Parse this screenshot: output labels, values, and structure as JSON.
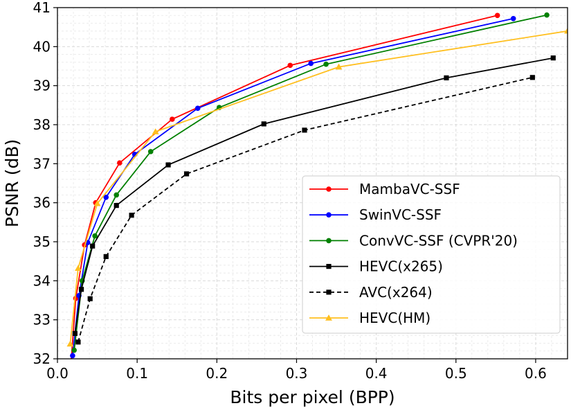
{
  "chart_data": {
    "type": "line",
    "title": "",
    "xlabel": "Bits per pixel (BPP)",
    "ylabel": "PSNR (dB)",
    "xlim": [
      0.0,
      0.64
    ],
    "ylim": [
      32,
      41
    ],
    "x_ticks": [
      "0.0",
      "0.1",
      "0.2",
      "0.3",
      "0.4",
      "0.5",
      "0.6"
    ],
    "y_ticks": [
      "32",
      "33",
      "34",
      "35",
      "36",
      "37",
      "38",
      "39",
      "40",
      "41"
    ],
    "grid": true,
    "minor_grid": true,
    "legend_position": "lower-right",
    "series": [
      {
        "name": "MambaVC-SSF",
        "color": "#ff0000",
        "marker": "circle",
        "linestyle": "solid",
        "x": [
          0.017,
          0.023,
          0.034,
          0.048,
          0.078,
          0.144,
          0.292,
          0.552
        ],
        "y": [
          31.9,
          33.55,
          34.92,
          36.0,
          37.02,
          38.14,
          39.52,
          40.8
        ]
      },
      {
        "name": "SwinVC-SSF",
        "color": "#0000ff",
        "marker": "circle",
        "linestyle": "solid",
        "x": [
          0.019,
          0.027,
          0.038,
          0.061,
          0.097,
          0.176,
          0.318,
          0.572
        ],
        "y": [
          32.08,
          33.62,
          34.98,
          36.14,
          37.24,
          38.42,
          39.57,
          40.72
        ]
      },
      {
        "name": "ConvVC-SSF (CVPR'20)",
        "color": "#008000",
        "marker": "circle",
        "linestyle": "solid",
        "x": [
          0.021,
          0.031,
          0.047,
          0.074,
          0.117,
          0.203,
          0.337,
          0.614
        ],
        "y": [
          32.22,
          34.0,
          35.15,
          36.2,
          37.31,
          38.44,
          39.55,
          40.81
        ]
      },
      {
        "name": "HEVC(x265)",
        "color": "#000000",
        "marker": "square",
        "linestyle": "solid",
        "x": [
          0.022,
          0.03,
          0.044,
          0.074,
          0.139,
          0.259,
          0.488,
          0.622
        ],
        "y": [
          32.65,
          33.78,
          34.89,
          35.93,
          36.97,
          38.02,
          39.2,
          39.71
        ]
      },
      {
        "name": "AVC(x264)",
        "color": "#000000",
        "marker": "square",
        "linestyle": "dashed",
        "x": [
          0.026,
          0.041,
          0.061,
          0.093,
          0.162,
          0.31,
          0.596
        ],
        "y": [
          32.43,
          33.54,
          34.62,
          35.68,
          36.74,
          37.86,
          39.21
        ]
      },
      {
        "name": "HEVC(HM)",
        "color": "#ffbf1f",
        "marker": "triangle",
        "linestyle": "solid",
        "x": [
          0.016,
          0.026,
          0.05,
          0.123,
          0.353,
          0.64
        ],
        "y": [
          32.38,
          34.32,
          35.98,
          37.82,
          39.48,
          40.4
        ]
      }
    ]
  }
}
